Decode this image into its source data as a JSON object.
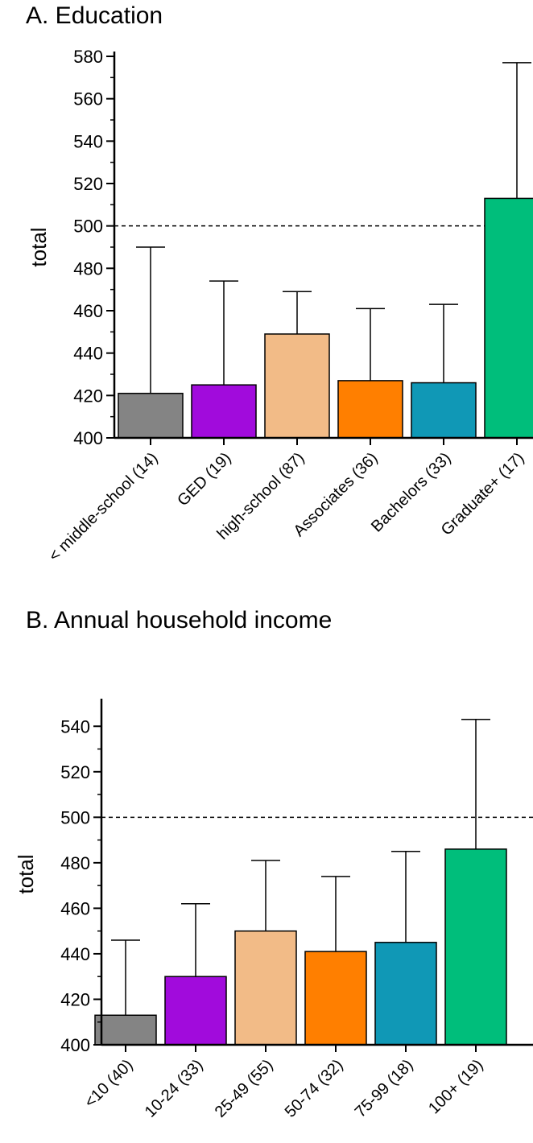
{
  "chart_data": [
    {
      "type": "bar",
      "title": "A. Education",
      "ylabel": "total",
      "ylim": [
        400,
        580
      ],
      "yticks": [
        400,
        420,
        440,
        460,
        480,
        500,
        520,
        540,
        560,
        580
      ],
      "reference_line": 500,
      "categories": [
        "< middle-school (14)",
        "GED (19)",
        "high-school (87)",
        "Associates (36)",
        "Bachelors (33)",
        "Graduate+ (17)"
      ],
      "values": [
        421,
        425,
        449,
        427,
        426,
        513
      ],
      "error_upper": [
        490,
        474,
        469,
        461,
        463,
        577
      ],
      "colors": [
        "#848484",
        "#a10bdc",
        "#f2bb87",
        "#ff7f00",
        "#1098b6",
        "#00be7b"
      ],
      "grid": false
    },
    {
      "type": "bar",
      "title": "B. Annual household income",
      "ylabel": "total",
      "ylim": [
        400,
        550
      ],
      "yticks": [
        400,
        420,
        440,
        460,
        480,
        500,
        520,
        540
      ],
      "reference_line": 500,
      "categories": [
        "<10 (40)",
        "10-24 (33)",
        "25-49 (55)",
        "50-74 (32)",
        "75-99 (18)",
        "100+ (19)"
      ],
      "values": [
        413,
        430,
        450,
        441,
        445,
        486
      ],
      "error_upper": [
        446,
        462,
        481,
        474,
        485,
        543
      ],
      "colors": [
        "#848484",
        "#a10bdc",
        "#f2bb87",
        "#ff7f00",
        "#1098b6",
        "#00be7b"
      ],
      "grid": false
    }
  ]
}
